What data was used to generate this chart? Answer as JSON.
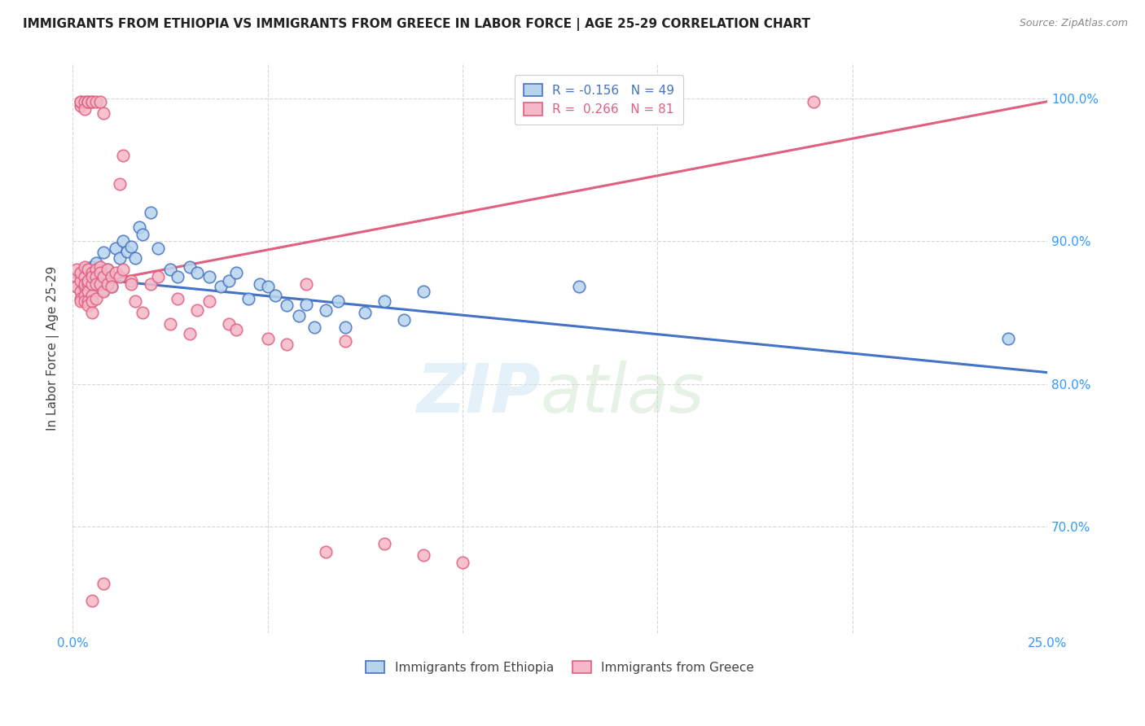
{
  "title": "IMMIGRANTS FROM ETHIOPIA VS IMMIGRANTS FROM GREECE IN LABOR FORCE | AGE 25-29 CORRELATION CHART",
  "source": "Source: ZipAtlas.com",
  "ylabel": "In Labor Force | Age 25-29",
  "xlim": [
    0.0,
    0.25
  ],
  "ylim": [
    0.625,
    1.025
  ],
  "xticks": [
    0.0,
    0.05,
    0.1,
    0.15,
    0.2,
    0.25
  ],
  "xticklabels": [
    "0.0%",
    "",
    "",
    "",
    "",
    "25.0%"
  ],
  "yticks": [
    0.7,
    0.8,
    0.9,
    1.0
  ],
  "yticklabels": [
    "70.0%",
    "80.0%",
    "90.0%",
    "100.0%"
  ],
  "legend_labels_bottom": [
    "Immigrants from Ethiopia",
    "Immigrants from Greece"
  ],
  "ethiopia_color": "#b8d4ed",
  "greece_color": "#f5b8c8",
  "ethiopia_line_color": "#4472c4",
  "greece_line_color": "#e06080",
  "ethiopia_line": [
    [
      0.0,
      0.875
    ],
    [
      0.25,
      0.808
    ]
  ],
  "greece_line": [
    [
      0.0,
      0.868
    ],
    [
      0.25,
      0.998
    ]
  ],
  "ethiopia_scatter": [
    [
      0.002,
      0.878
    ],
    [
      0.003,
      0.88
    ],
    [
      0.004,
      0.876
    ],
    [
      0.005,
      0.882
    ],
    [
      0.005,
      0.875
    ],
    [
      0.006,
      0.872
    ],
    [
      0.006,
      0.885
    ],
    [
      0.007,
      0.878
    ],
    [
      0.007,
      0.87
    ],
    [
      0.008,
      0.866
    ],
    [
      0.008,
      0.892
    ],
    [
      0.009,
      0.88
    ],
    [
      0.01,
      0.874
    ],
    [
      0.01,
      0.868
    ],
    [
      0.011,
      0.895
    ],
    [
      0.012,
      0.888
    ],
    [
      0.013,
      0.9
    ],
    [
      0.014,
      0.893
    ],
    [
      0.015,
      0.896
    ],
    [
      0.016,
      0.888
    ],
    [
      0.017,
      0.91
    ],
    [
      0.018,
      0.905
    ],
    [
      0.02,
      0.92
    ],
    [
      0.022,
      0.895
    ],
    [
      0.025,
      0.88
    ],
    [
      0.027,
      0.875
    ],
    [
      0.03,
      0.882
    ],
    [
      0.032,
      0.878
    ],
    [
      0.035,
      0.875
    ],
    [
      0.038,
      0.868
    ],
    [
      0.04,
      0.872
    ],
    [
      0.042,
      0.878
    ],
    [
      0.045,
      0.86
    ],
    [
      0.048,
      0.87
    ],
    [
      0.05,
      0.868
    ],
    [
      0.052,
      0.862
    ],
    [
      0.055,
      0.855
    ],
    [
      0.058,
      0.848
    ],
    [
      0.06,
      0.856
    ],
    [
      0.062,
      0.84
    ],
    [
      0.065,
      0.852
    ],
    [
      0.068,
      0.858
    ],
    [
      0.07,
      0.84
    ],
    [
      0.075,
      0.85
    ],
    [
      0.08,
      0.858
    ],
    [
      0.085,
      0.845
    ],
    [
      0.09,
      0.865
    ],
    [
      0.13,
      0.868
    ],
    [
      0.24,
      0.832
    ]
  ],
  "greece_scatter": [
    [
      0.001,
      0.868
    ],
    [
      0.001,
      0.875
    ],
    [
      0.001,
      0.88
    ],
    [
      0.001,
      0.868
    ],
    [
      0.002,
      0.872
    ],
    [
      0.002,
      0.865
    ],
    [
      0.002,
      0.878
    ],
    [
      0.002,
      0.86
    ],
    [
      0.002,
      0.858
    ],
    [
      0.002,
      0.995
    ],
    [
      0.002,
      0.998
    ],
    [
      0.002,
      0.998
    ],
    [
      0.003,
      0.868
    ],
    [
      0.003,
      0.875
    ],
    [
      0.003,
      0.882
    ],
    [
      0.003,
      0.862
    ],
    [
      0.003,
      0.858
    ],
    [
      0.003,
      0.87
    ],
    [
      0.003,
      0.998
    ],
    [
      0.003,
      0.993
    ],
    [
      0.004,
      0.998
    ],
    [
      0.004,
      0.998
    ],
    [
      0.004,
      0.87
    ],
    [
      0.004,
      0.865
    ],
    [
      0.004,
      0.858
    ],
    [
      0.004,
      0.88
    ],
    [
      0.004,
      0.872
    ],
    [
      0.004,
      0.855
    ],
    [
      0.005,
      0.998
    ],
    [
      0.005,
      0.998
    ],
    [
      0.005,
      0.878
    ],
    [
      0.005,
      0.862
    ],
    [
      0.005,
      0.87
    ],
    [
      0.005,
      0.858
    ],
    [
      0.005,
      0.875
    ],
    [
      0.005,
      0.85
    ],
    [
      0.006,
      0.998
    ],
    [
      0.006,
      0.88
    ],
    [
      0.006,
      0.875
    ],
    [
      0.006,
      0.87
    ],
    [
      0.006,
      0.86
    ],
    [
      0.007,
      0.882
    ],
    [
      0.007,
      0.878
    ],
    [
      0.007,
      0.998
    ],
    [
      0.007,
      0.87
    ],
    [
      0.008,
      0.875
    ],
    [
      0.008,
      0.99
    ],
    [
      0.008,
      0.865
    ],
    [
      0.009,
      0.88
    ],
    [
      0.009,
      0.87
    ],
    [
      0.01,
      0.875
    ],
    [
      0.01,
      0.868
    ],
    [
      0.011,
      0.878
    ],
    [
      0.012,
      0.94
    ],
    [
      0.012,
      0.875
    ],
    [
      0.013,
      0.96
    ],
    [
      0.013,
      0.88
    ],
    [
      0.015,
      0.872
    ],
    [
      0.015,
      0.87
    ],
    [
      0.016,
      0.858
    ],
    [
      0.018,
      0.85
    ],
    [
      0.02,
      0.87
    ],
    [
      0.022,
      0.875
    ],
    [
      0.025,
      0.842
    ],
    [
      0.027,
      0.86
    ],
    [
      0.03,
      0.835
    ],
    [
      0.032,
      0.852
    ],
    [
      0.035,
      0.858
    ],
    [
      0.04,
      0.842
    ],
    [
      0.042,
      0.838
    ],
    [
      0.05,
      0.832
    ],
    [
      0.055,
      0.828
    ],
    [
      0.06,
      0.87
    ],
    [
      0.065,
      0.682
    ],
    [
      0.07,
      0.83
    ],
    [
      0.08,
      0.688
    ],
    [
      0.09,
      0.68
    ],
    [
      0.1,
      0.675
    ],
    [
      0.19,
      0.998
    ],
    [
      0.005,
      0.648
    ],
    [
      0.008,
      0.66
    ]
  ]
}
